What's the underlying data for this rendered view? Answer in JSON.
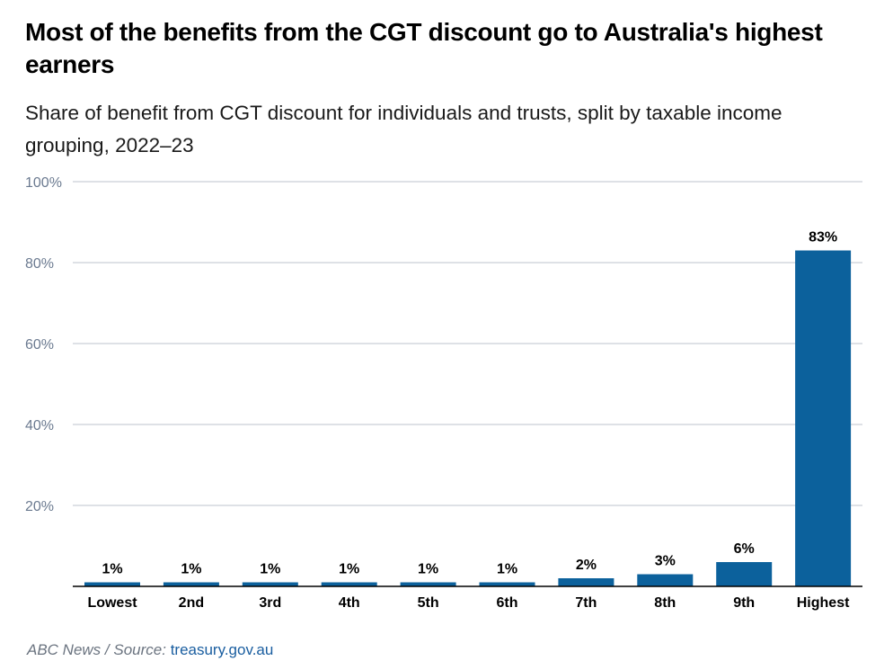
{
  "title": "Most of the benefits from the CGT discount go to Australia's highest earners",
  "subtitle": "Share of benefit from CGT discount for individuals and trusts, split by taxable income grouping, 2022–23",
  "footer": {
    "source_prefix": "ABC News / Source:",
    "source_link": "treasury.gov.au"
  },
  "colors": {
    "bar": "#0c619c",
    "gridline": "#d3d7de",
    "tick_label": "#6b7a90",
    "baseline": "#000000"
  },
  "chart_data": {
    "type": "bar",
    "title": "Most of the benefits from the CGT discount go to Australia's highest earners",
    "subtitle": "Share of benefit from CGT discount for individuals and trusts, split by taxable income grouping, 2022–23",
    "categories": [
      "Lowest",
      "2nd",
      "3rd",
      "4th",
      "5th",
      "6th",
      "7th",
      "8th",
      "9th",
      "Highest"
    ],
    "values": [
      1,
      1,
      1,
      1,
      1,
      1,
      2,
      3,
      6,
      83
    ],
    "value_labels": [
      "1%",
      "1%",
      "1%",
      "1%",
      "1%",
      "1%",
      "2%",
      "3%",
      "6%",
      "83%"
    ],
    "xlabel": "",
    "ylabel": "",
    "ylim": [
      0,
      100
    ],
    "yticks": [
      20,
      40,
      60,
      80,
      100
    ],
    "ytick_labels": [
      "20%",
      "40%",
      "60%",
      "80%",
      "100%"
    ],
    "grid": true,
    "legend": "none"
  }
}
